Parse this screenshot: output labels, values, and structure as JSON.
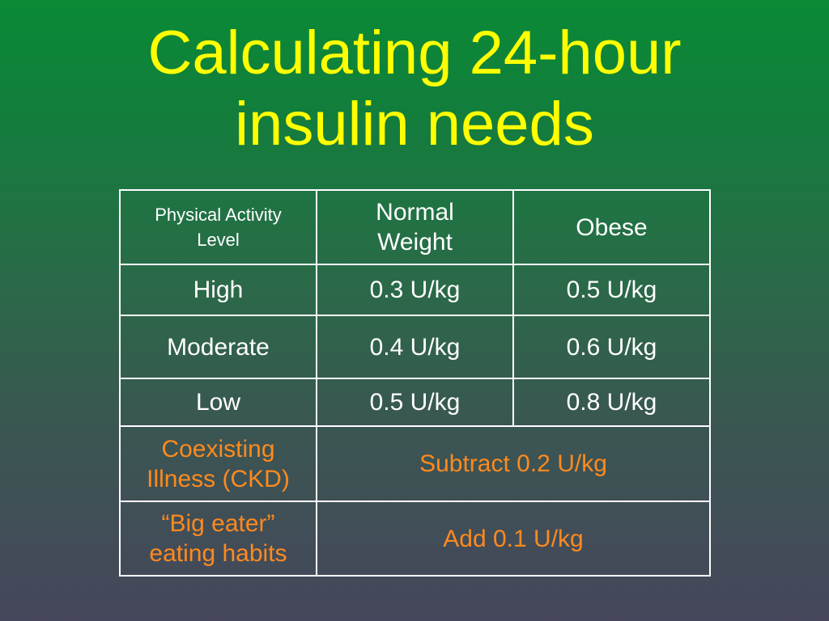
{
  "title": {
    "line1": "Calculating 24-hour",
    "line2": "insulin needs"
  },
  "table": {
    "header": {
      "col1_line1": "Physical Activity",
      "col1_line2": "Level",
      "col2_line1": "Normal",
      "col2_line2": "Weight",
      "col3": "Obese"
    },
    "rows": [
      {
        "level": "High",
        "normal": "0.3 U/kg",
        "obese": "0.5 U/kg"
      },
      {
        "level": "Moderate",
        "normal": "0.4 U/kg",
        "obese": "0.6 U/kg"
      },
      {
        "level": "Low",
        "normal": "0.5 U/kg",
        "obese": "0.8 U/kg"
      }
    ],
    "adjustments": [
      {
        "label_line1": "Coexisting",
        "label_line2": "Illness (CKD)",
        "value": "Subtract 0.2 U/kg"
      },
      {
        "label_line1": "“Big eater”",
        "label_line2": "eating habits",
        "value": "Add 0.1 U/kg"
      }
    ]
  },
  "colors": {
    "title": "#ffff00",
    "body_text": "#ffffff",
    "adjustment_text": "#ff8a1e",
    "background_top": "#0a8a36",
    "background_bottom": "#46475c"
  }
}
